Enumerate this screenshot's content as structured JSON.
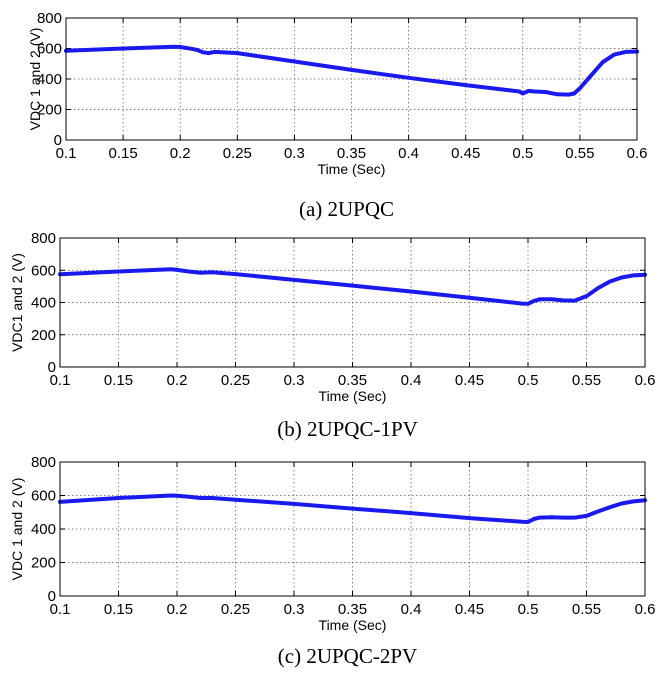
{
  "chart_data": [
    {
      "type": "line",
      "caption": "(a) 2UPQC",
      "xlabel": "Time (Sec)",
      "ylabel": "VDC 1 and 2 (V)",
      "xlim": [
        0.1,
        0.6
      ],
      "ylim": [
        0,
        800
      ],
      "grid": true,
      "x_ticks": [
        "0.1",
        "0.15",
        "0.2",
        "0.25",
        "0.3",
        "0.35",
        "0.4",
        "0.45",
        "0.5",
        "0.55",
        "0.6"
      ],
      "y_ticks": [
        "0",
        "200",
        "400",
        "600",
        "800"
      ],
      "line_color": "#1a1aee",
      "series": [
        {
          "x": [
            0.1,
            0.15,
            0.195,
            0.2,
            0.21,
            0.215,
            0.22,
            0.225,
            0.23,
            0.25,
            0.3,
            0.35,
            0.4,
            0.45,
            0.497,
            0.5,
            0.505,
            0.51,
            0.52,
            0.53,
            0.54,
            0.545,
            0.55,
            0.56,
            0.57,
            0.58,
            0.59,
            0.6
          ],
          "y": [
            585,
            600,
            612,
            610,
            598,
            590,
            575,
            570,
            578,
            570,
            515,
            460,
            408,
            360,
            318,
            305,
            322,
            318,
            315,
            300,
            298,
            305,
            340,
            425,
            510,
            560,
            578,
            580
          ]
        }
      ]
    },
    {
      "type": "line",
      "caption": "(b) 2UPQC-1PV",
      "xlabel": "Time (Sec)",
      "ylabel": "VDC1 and 2 (V)",
      "xlim": [
        0.1,
        0.6
      ],
      "ylim": [
        0,
        800
      ],
      "grid": true,
      "x_ticks": [
        "0.1",
        "0.15",
        "0.2",
        "0.25",
        "0.3",
        "0.35",
        "0.4",
        "0.45",
        "0.5",
        "0.55",
        "0.6"
      ],
      "y_ticks": [
        "0",
        "200",
        "400",
        "600",
        "800"
      ],
      "line_color": "#1a1aee",
      "series": [
        {
          "x": [
            0.1,
            0.15,
            0.195,
            0.2,
            0.21,
            0.22,
            0.23,
            0.25,
            0.3,
            0.35,
            0.4,
            0.45,
            0.495,
            0.5,
            0.505,
            0.51,
            0.52,
            0.53,
            0.54,
            0.55,
            0.56,
            0.57,
            0.58,
            0.59,
            0.6
          ],
          "y": [
            575,
            592,
            606,
            602,
            592,
            585,
            588,
            576,
            540,
            505,
            468,
            430,
            393,
            392,
            410,
            420,
            420,
            413,
            412,
            440,
            490,
            530,
            555,
            568,
            572
          ]
        }
      ]
    },
    {
      "type": "line",
      "caption": "(c) 2UPQC-2PV",
      "xlabel": "Time (Sec)",
      "ylabel": "VDC 1 and 2 (V)",
      "xlim": [
        0.1,
        0.6
      ],
      "ylim": [
        0,
        800
      ],
      "grid": true,
      "x_ticks": [
        "0.1",
        "0.15",
        "0.2",
        "0.25",
        "0.3",
        "0.35",
        "0.4",
        "0.45",
        "0.5",
        "0.55",
        "0.6"
      ],
      "y_ticks": [
        "0",
        "200",
        "400",
        "600",
        "800"
      ],
      "line_color": "#1a1aee",
      "series": [
        {
          "x": [
            0.1,
            0.15,
            0.195,
            0.2,
            0.21,
            0.22,
            0.23,
            0.25,
            0.3,
            0.35,
            0.4,
            0.45,
            0.495,
            0.5,
            0.505,
            0.51,
            0.52,
            0.53,
            0.54,
            0.55,
            0.56,
            0.57,
            0.58,
            0.59,
            0.6
          ],
          "y": [
            562,
            585,
            600,
            598,
            592,
            585,
            585,
            575,
            550,
            522,
            495,
            465,
            443,
            442,
            460,
            468,
            470,
            468,
            468,
            478,
            505,
            530,
            552,
            565,
            572
          ]
        }
      ]
    }
  ]
}
